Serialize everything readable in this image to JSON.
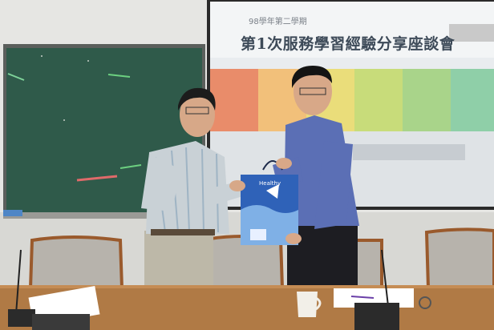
{
  "image": {
    "kind": "photograph",
    "scene": "two men exchanging a gift bag in front of a projected slide and a chalkboard",
    "slide": {
      "subtitle": "98學年第二學期",
      "title": "第1次服務學習經驗分享座談會"
    },
    "gift_bag": {
      "text": "Healthy"
    },
    "colors": {
      "chalkboard": "#2f5a4a",
      "projection": "#e9ecef",
      "table": "#b07a45",
      "bag": "#2f62b8",
      "shirt_left": "#c9d1d6",
      "shirt_right": "#5b6fb5"
    }
  }
}
